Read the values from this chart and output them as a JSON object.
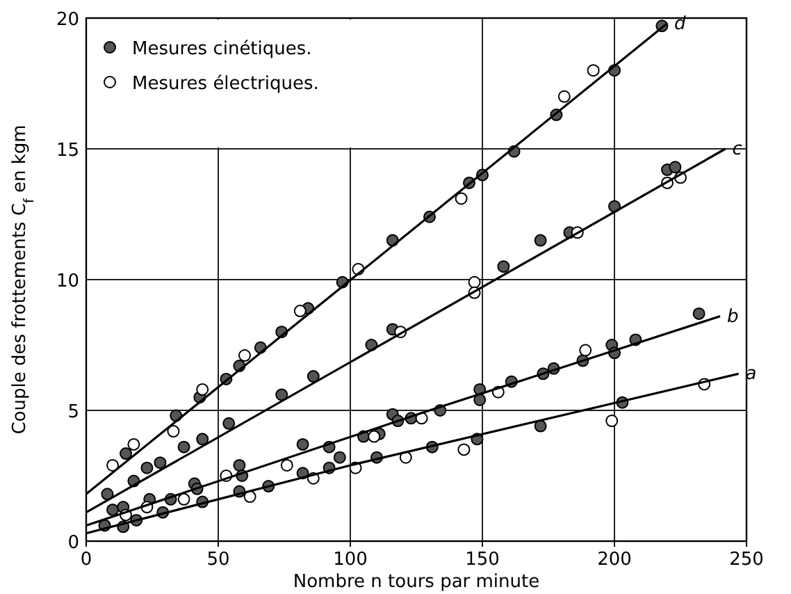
{
  "chart_data": {
    "type": "scatter",
    "xlabel": "Nombre n  tours par minute",
    "ylabel": "Couple des frottements C$_{f}$ en kgm",
    "xlim": [
      0,
      250
    ],
    "ylim": [
      0,
      20
    ],
    "xticks": [
      0,
      50,
      100,
      150,
      200,
      250
    ],
    "yticks": [
      0,
      5,
      10,
      15,
      20
    ],
    "grid": true,
    "legend": "top left",
    "marker": "circle",
    "series": [
      {
        "name": "Mesures cinétiques.",
        "color": "#555555",
        "x": [
          15,
          34,
          43,
          53,
          58,
          66,
          74,
          84,
          97,
          116,
          130,
          145,
          150,
          162,
          178,
          200,
          218,
          8,
          18,
          23,
          28,
          37,
          44,
          54,
          74,
          86,
          108,
          116,
          158,
          172,
          183,
          200,
          220,
          223,
          10,
          14,
          24,
          32,
          41,
          42,
          58,
          59,
          82,
          92,
          105,
          111,
          116,
          118,
          123,
          134,
          149,
          149,
          161,
          173,
          177,
          188,
          199,
          200,
          208,
          232,
          7,
          14,
          19,
          29,
          44,
          58,
          69,
          82,
          92,
          96,
          110,
          131,
          148,
          172,
          203
        ],
        "values": [
          3.35,
          4.8,
          5.5,
          6.2,
          6.7,
          7.4,
          8.0,
          8.9,
          9.9,
          11.5,
          12.4,
          13.7,
          14.0,
          14.9,
          16.3,
          18.0,
          19.7,
          1.8,
          2.3,
          2.8,
          3.0,
          3.6,
          3.9,
          4.5,
          5.6,
          6.3,
          7.5,
          8.1,
          10.5,
          11.5,
          11.8,
          12.8,
          14.2,
          14.3,
          1.2,
          1.3,
          1.6,
          1.6,
          2.2,
          2.0,
          2.9,
          2.5,
          3.7,
          3.6,
          4.0,
          4.1,
          4.85,
          4.6,
          4.7,
          5.0,
          5.8,
          5.4,
          6.1,
          6.4,
          6.6,
          6.9,
          7.5,
          7.2,
          7.7,
          8.7,
          0.6,
          0.55,
          0.8,
          1.1,
          1.5,
          1.9,
          2.1,
          2.6,
          2.8,
          3.2,
          3.2,
          3.6,
          3.9,
          4.4,
          5.3
        ]
      },
      {
        "name": "Mesures électriques.",
        "color": "#ffffff",
        "x": [
          10,
          18,
          33,
          44,
          60,
          81,
          103,
          142,
          181,
          192,
          119,
          147,
          147,
          186,
          220,
          225,
          37,
          53,
          76,
          109,
          127,
          156,
          189,
          15,
          23,
          62,
          86,
          102,
          121,
          143,
          199,
          234
        ],
        "values": [
          2.9,
          3.7,
          4.2,
          5.8,
          7.1,
          8.8,
          10.4,
          13.1,
          17.0,
          18.0,
          8.0,
          9.9,
          9.5,
          11.8,
          13.7,
          13.9,
          1.6,
          2.5,
          2.9,
          4.0,
          4.7,
          5.7,
          7.3,
          1.0,
          1.3,
          1.7,
          2.4,
          2.8,
          3.2,
          3.5,
          4.6,
          6.0
        ]
      },
      {
        "name": "d",
        "type": "line",
        "color": "#000000",
        "marker": "none",
        "line_style": "solid",
        "x": [
          0,
          220
        ],
        "values": [
          1.8,
          19.8
        ]
      },
      {
        "name": "c",
        "type": "line",
        "color": "#000000",
        "marker": "none",
        "line_style": "solid",
        "x": [
          0,
          242
        ],
        "values": [
          1.1,
          15.0
        ]
      },
      {
        "name": "b",
        "type": "line",
        "color": "#000000",
        "marker": "none",
        "line_style": "solid",
        "x": [
          0,
          130,
          240
        ],
        "values": [
          0.6,
          5.0,
          8.6
        ]
      },
      {
        "name": "a",
        "type": "line",
        "color": "#000000",
        "marker": "none",
        "line_style": "solid",
        "x": [
          0,
          100,
          247
        ],
        "values": [
          0.3,
          2.9,
          6.4
        ]
      }
    ]
  }
}
